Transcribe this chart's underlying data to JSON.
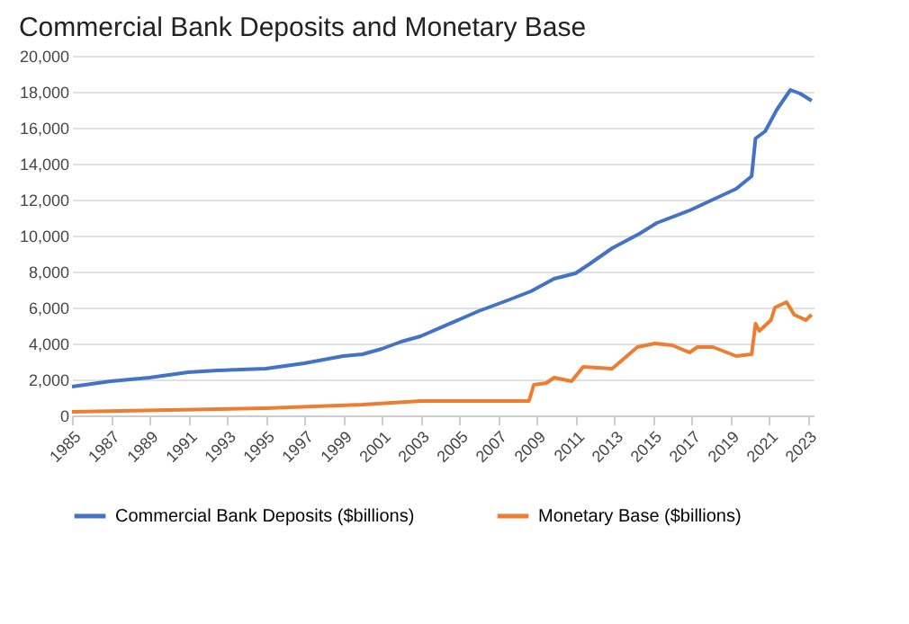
{
  "chart_data": {
    "type": "line",
    "title": "Commercial Bank Deposits and Monetary Base",
    "xlim": [
      1985,
      2023.3
    ],
    "xticks": [
      1985,
      1987,
      1989,
      1991,
      1993,
      1995,
      1997,
      1999,
      2001,
      2003,
      2005,
      2007,
      2009,
      2011,
      2013,
      2015,
      2017,
      2019,
      2021,
      2023
    ],
    "ylim": [
      0,
      20000
    ],
    "yticks": [
      {
        "value": 0,
        "label": "0"
      },
      {
        "value": 2000,
        "label": "2,000"
      },
      {
        "value": 4000,
        "label": "4,000"
      },
      {
        "value": 6000,
        "label": "6,000"
      },
      {
        "value": 8000,
        "label": "8,000"
      },
      {
        "value": 10000,
        "label": "10,000"
      },
      {
        "value": 12000,
        "label": "12,000"
      },
      {
        "value": 14000,
        "label": "14,000"
      },
      {
        "value": 16000,
        "label": "16,000"
      },
      {
        "value": 18000,
        "label": "18,000"
      },
      {
        "value": 20000,
        "label": "20,000"
      }
    ],
    "grid": "y",
    "legend": "bottom",
    "marker": "none",
    "line_style": "solid",
    "series": [
      {
        "name": "Commercial Bank Deposits ($billions)",
        "color": "#4472c4",
        "x": [
          1985,
          1987,
          1989,
          1991,
          1992.5,
          1995,
          1997,
          1999,
          2000,
          2001,
          2002,
          2003,
          2006,
          2007.5,
          2008.7,
          2009.9,
          2011,
          2011.7,
          2012.9,
          2014.3,
          2015.2,
          2016.9,
          2018.1,
          2019.3,
          2020.1,
          2020.3,
          2020.8,
          2021.4,
          2022.1,
          2022.6,
          2023.2
        ],
        "values": [
          1600,
          1900,
          2100,
          2400,
          2500,
          2600,
          2900,
          3300,
          3400,
          3700,
          4100,
          4400,
          5800,
          6400,
          6900,
          7600,
          7900,
          8400,
          9300,
          10100,
          10700,
          11400,
          12000,
          12600,
          13300,
          15400,
          15800,
          17000,
          18100,
          17900,
          17500
        ]
      },
      {
        "name": "Monetary Base ($billions)",
        "color": "#ed7d31",
        "x": [
          1985,
          1995,
          2000,
          2003,
          2008.6,
          2008.85,
          2009.5,
          2009.9,
          2010.8,
          2011.4,
          2012.9,
          2014.2,
          2015.1,
          2016,
          2016.9,
          2017.3,
          2018.1,
          2019.3,
          2020.1,
          2020.3,
          2020.5,
          2021.1,
          2021.3,
          2021.9,
          2022.3,
          2022.9,
          2023.2
        ],
        "values": [
          200,
          400,
          600,
          800,
          800,
          1700,
          1800,
          2100,
          1900,
          2700,
          2600,
          3800,
          4000,
          3900,
          3500,
          3800,
          3800,
          3300,
          3400,
          5100,
          4700,
          5300,
          6000,
          6300,
          5600,
          5300,
          5600
        ]
      }
    ]
  }
}
